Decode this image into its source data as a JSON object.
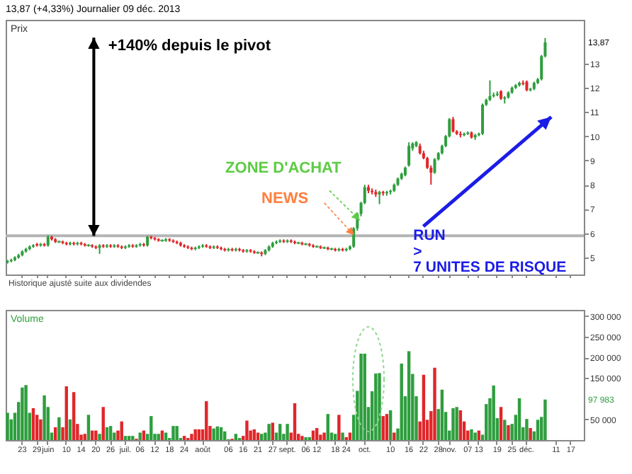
{
  "chart_data": [
    {
      "type": "candlestick",
      "title": "13,87 (+4,33%)   Journalier 09 déc. 2013",
      "ylabel": "Prix",
      "ohlc": [
        [
          4.8,
          4.9,
          4.75,
          4.85
        ],
        [
          4.85,
          4.95,
          4.8,
          4.9
        ],
        [
          4.9,
          5.05,
          4.85,
          5.0
        ],
        [
          5.0,
          5.15,
          4.95,
          5.1
        ],
        [
          5.1,
          5.3,
          5.05,
          5.25
        ],
        [
          5.25,
          5.4,
          5.2,
          5.35
        ],
        [
          5.35,
          5.5,
          5.3,
          5.45
        ],
        [
          5.45,
          5.55,
          5.4,
          5.5
        ],
        [
          5.55,
          5.6,
          5.45,
          5.5
        ],
        [
          5.5,
          5.6,
          5.45,
          5.55
        ],
        [
          5.55,
          5.6,
          5.45,
          5.5
        ],
        [
          5.5,
          5.92,
          5.45,
          5.85
        ],
        [
          5.85,
          5.9,
          5.7,
          5.75
        ],
        [
          5.75,
          5.8,
          5.6,
          5.65
        ],
        [
          5.65,
          5.7,
          5.6,
          5.65
        ],
        [
          5.65,
          5.7,
          5.55,
          5.6
        ],
        [
          5.6,
          5.65,
          5.5,
          5.55
        ],
        [
          5.55,
          5.65,
          5.5,
          5.6
        ],
        [
          5.6,
          5.65,
          5.5,
          5.55
        ],
        [
          5.55,
          5.65,
          5.5,
          5.6
        ],
        [
          5.6,
          5.65,
          5.5,
          5.55
        ],
        [
          5.55,
          5.6,
          5.45,
          5.5
        ],
        [
          5.5,
          5.55,
          5.45,
          5.5
        ],
        [
          5.5,
          5.55,
          5.4,
          5.45
        ],
        [
          5.45,
          5.5,
          5.35,
          5.4
        ],
        [
          5.4,
          5.55,
          5.15,
          5.5
        ],
        [
          5.5,
          5.55,
          5.4,
          5.45
        ],
        [
          5.45,
          5.55,
          5.4,
          5.5
        ],
        [
          5.5,
          5.55,
          5.4,
          5.45
        ],
        [
          5.45,
          5.55,
          5.4,
          5.5
        ],
        [
          5.5,
          5.55,
          5.4,
          5.45
        ],
        [
          5.45,
          5.5,
          5.35,
          5.4
        ],
        [
          5.4,
          5.5,
          5.35,
          5.45
        ],
        [
          5.45,
          5.55,
          5.4,
          5.5
        ],
        [
          5.5,
          5.55,
          5.4,
          5.45
        ],
        [
          5.45,
          5.55,
          5.4,
          5.5
        ],
        [
          5.5,
          5.6,
          5.45,
          5.55
        ],
        [
          5.55,
          5.6,
          5.45,
          5.5
        ],
        [
          5.5,
          5.9,
          5.45,
          5.85
        ],
        [
          5.85,
          5.9,
          5.75,
          5.8
        ],
        [
          5.8,
          5.85,
          5.7,
          5.75
        ],
        [
          5.75,
          5.8,
          5.65,
          5.7
        ],
        [
          5.7,
          5.75,
          5.65,
          5.7
        ],
        [
          5.7,
          5.8,
          5.65,
          5.75
        ],
        [
          5.75,
          5.8,
          5.65,
          5.7
        ],
        [
          5.7,
          5.75,
          5.6,
          5.65
        ],
        [
          5.65,
          5.7,
          5.55,
          5.6
        ],
        [
          5.6,
          5.65,
          5.45,
          5.5
        ],
        [
          5.5,
          5.55,
          5.4,
          5.45
        ],
        [
          5.45,
          5.5,
          5.35,
          5.4
        ],
        [
          5.4,
          5.45,
          5.3,
          5.35
        ],
        [
          5.35,
          5.45,
          5.3,
          5.4
        ],
        [
          5.4,
          5.5,
          5.35,
          5.45
        ],
        [
          5.45,
          5.55,
          5.4,
          5.5
        ],
        [
          5.5,
          5.55,
          5.4,
          5.45
        ],
        [
          5.45,
          5.5,
          5.35,
          5.4
        ],
        [
          5.4,
          5.5,
          5.35,
          5.45
        ],
        [
          5.45,
          5.5,
          5.35,
          5.4
        ],
        [
          5.4,
          5.45,
          5.3,
          5.35
        ],
        [
          5.35,
          5.4,
          5.25,
          5.3
        ],
        [
          5.3,
          5.4,
          5.25,
          5.35
        ],
        [
          5.35,
          5.4,
          5.25,
          5.3
        ],
        [
          5.3,
          5.4,
          5.25,
          5.35
        ],
        [
          5.35,
          5.4,
          5.25,
          5.3
        ],
        [
          5.3,
          5.35,
          5.2,
          5.25
        ],
        [
          5.25,
          5.35,
          5.2,
          5.3
        ],
        [
          5.3,
          5.35,
          5.2,
          5.25
        ],
        [
          5.25,
          5.3,
          5.15,
          5.2
        ],
        [
          5.2,
          5.25,
          5.15,
          5.2
        ],
        [
          5.2,
          5.25,
          5.05,
          5.15
        ],
        [
          5.15,
          5.35,
          5.1,
          5.3
        ],
        [
          5.3,
          5.5,
          5.25,
          5.45
        ],
        [
          5.45,
          5.65,
          5.4,
          5.6
        ],
        [
          5.6,
          5.7,
          5.55,
          5.65
        ],
        [
          5.65,
          5.75,
          5.6,
          5.7
        ],
        [
          5.7,
          5.75,
          5.6,
          5.65
        ],
        [
          5.65,
          5.75,
          5.6,
          5.7
        ],
        [
          5.7,
          5.75,
          5.6,
          5.65
        ],
        [
          5.65,
          5.7,
          5.55,
          5.6
        ],
        [
          5.6,
          5.65,
          5.55,
          5.6
        ],
        [
          5.6,
          5.65,
          5.5,
          5.55
        ],
        [
          5.55,
          5.6,
          5.5,
          5.55
        ],
        [
          5.55,
          5.6,
          5.45,
          5.5
        ],
        [
          5.5,
          5.55,
          5.4,
          5.45
        ],
        [
          5.45,
          5.5,
          5.4,
          5.45
        ],
        [
          5.45,
          5.5,
          5.35,
          5.4
        ],
        [
          5.4,
          5.45,
          5.35,
          5.4
        ],
        [
          5.4,
          5.45,
          5.3,
          5.35
        ],
        [
          5.35,
          5.4,
          5.3,
          5.35
        ],
        [
          5.35,
          5.4,
          5.25,
          5.3
        ],
        [
          5.3,
          5.4,
          5.25,
          5.35
        ],
        [
          5.35,
          5.4,
          5.25,
          5.3
        ],
        [
          5.3,
          5.4,
          5.25,
          5.35
        ],
        [
          5.35,
          5.5,
          5.3,
          5.45
        ],
        [
          5.45,
          6.25,
          5.4,
          6.2
        ],
        [
          6.2,
          6.85,
          6.1,
          6.8
        ],
        [
          6.8,
          7.3,
          6.7,
          7.25
        ],
        [
          7.25,
          8.0,
          7.2,
          7.9
        ],
        [
          7.9,
          8.0,
          7.65,
          7.75
        ],
        [
          7.75,
          7.85,
          7.6,
          7.7
        ],
        [
          7.7,
          7.8,
          7.5,
          7.6
        ],
        [
          7.6,
          7.75,
          7.2,
          7.7
        ],
        [
          7.7,
          7.75,
          7.55,
          7.65
        ],
        [
          7.65,
          7.75,
          7.55,
          7.7
        ],
        [
          7.7,
          7.8,
          7.6,
          7.75
        ],
        [
          7.75,
          8.05,
          7.7,
          8.0
        ],
        [
          8.0,
          8.3,
          7.95,
          8.25
        ],
        [
          8.25,
          8.5,
          8.2,
          8.45
        ],
        [
          8.4,
          8.75,
          8.35,
          8.7
        ],
        [
          8.8,
          9.75,
          8.75,
          9.6
        ],
        [
          9.5,
          9.75,
          9.4,
          9.7
        ],
        [
          9.6,
          9.8,
          9.55,
          9.75
        ],
        [
          9.6,
          9.7,
          9.25,
          9.3
        ],
        [
          9.3,
          9.4,
          9.05,
          9.1
        ],
        [
          9.1,
          9.15,
          8.65,
          8.7
        ],
        [
          8.7,
          8.8,
          8.0,
          8.5
        ],
        [
          8.5,
          9.1,
          8.45,
          9.05
        ],
        [
          9.05,
          9.35,
          9.0,
          9.3
        ],
        [
          9.3,
          9.65,
          9.25,
          9.6
        ],
        [
          9.6,
          10.05,
          9.55,
          10.0
        ],
        [
          10.0,
          10.75,
          9.95,
          10.7
        ],
        [
          10.7,
          10.8,
          10.15,
          10.2
        ],
        [
          10.2,
          10.25,
          10.05,
          10.1
        ],
        [
          10.1,
          10.2,
          9.95,
          10.05
        ],
        [
          10.05,
          10.15,
          10.0,
          10.1
        ],
        [
          10.1,
          10.2,
          10.05,
          10.15
        ],
        [
          10.15,
          10.2,
          9.9,
          9.95
        ],
        [
          9.95,
          10.1,
          9.85,
          10.05
        ],
        [
          10.05,
          10.15,
          10.0,
          10.1
        ],
        [
          10.1,
          11.35,
          10.05,
          11.3
        ],
        [
          11.3,
          11.55,
          11.25,
          11.5
        ],
        [
          11.5,
          12.3,
          11.45,
          11.65
        ],
        [
          11.65,
          11.8,
          11.6,
          11.7
        ],
        [
          11.7,
          11.85,
          11.65,
          11.75
        ],
        [
          11.85,
          11.9,
          11.5,
          11.55
        ],
        [
          11.55,
          11.65,
          11.35,
          11.6
        ],
        [
          11.6,
          11.85,
          11.55,
          11.8
        ],
        [
          11.8,
          12.05,
          11.75,
          12.0
        ],
        [
          12.0,
          12.15,
          11.95,
          12.1
        ],
        [
          12.1,
          12.25,
          12.05,
          12.2
        ],
        [
          12.2,
          12.3,
          12.1,
          12.15
        ],
        [
          12.25,
          12.3,
          11.85,
          11.9
        ],
        [
          11.9,
          12.0,
          11.85,
          11.95
        ],
        [
          11.95,
          12.25,
          11.9,
          12.2
        ],
        [
          12.2,
          12.4,
          12.15,
          12.35
        ],
        [
          12.35,
          13.35,
          12.3,
          13.3
        ],
        [
          13.3,
          14.05,
          13.25,
          13.87
        ],
        null,
        null,
        null,
        null,
        null,
        null,
        null,
        null,
        null,
        null
      ],
      "ylim": [
        4.3,
        14.8
      ],
      "yticks": [
        5,
        6,
        7,
        8,
        9,
        10,
        11,
        12,
        13
      ],
      "ref_lines": [
        {
          "axis": "y",
          "value": 5.9,
          "color": "#b4b4b4"
        }
      ],
      "tick_labels": "y",
      "annotations": [
        "+140% depuis le pivot",
        "ZONE D'ACHAT",
        "NEWS",
        "RUN",
        ">",
        "7 UNITES DE RISQUE",
        "13,87",
        "Historique ajusté suite aux dividendes"
      ]
    },
    {
      "type": "bar",
      "ylabel": "Volume",
      "categories": [
        null,
        null,
        null,
        null,
        "23",
        null,
        null,
        null,
        "29",
        null,
        null,
        "juin",
        null,
        null,
        null,
        null,
        "10",
        null,
        null,
        null,
        "14",
        null,
        null,
        null,
        "20",
        null,
        null,
        null,
        "26",
        null,
        null,
        null,
        "juil.",
        null,
        null,
        null,
        "06",
        null,
        null,
        null,
        "12",
        null,
        null,
        null,
        "18",
        null,
        null,
        null,
        "24",
        null,
        null,
        null,
        null,
        "août",
        null,
        null,
        null,
        null,
        null,
        null,
        "06",
        null,
        null,
        null,
        "16",
        null,
        null,
        null,
        "21",
        null,
        null,
        null,
        "27",
        null,
        null,
        null,
        "sept.",
        null,
        null,
        null,
        null,
        "06",
        null,
        null,
        "12",
        null,
        null,
        null,
        null,
        "18",
        null,
        null,
        "24",
        null,
        null,
        null,
        null,
        "oct.",
        null,
        null,
        null,
        null,
        null,
        null,
        "10",
        null,
        null,
        null,
        null,
        "16",
        null,
        null,
        null,
        "22",
        null,
        null,
        null,
        "28",
        null,
        null,
        "nov.",
        null,
        null,
        null,
        null,
        "07",
        null,
        null,
        "13",
        null,
        null,
        null,
        null,
        "19",
        null,
        null,
        null,
        "25",
        null,
        null,
        null,
        "déc.",
        null,
        null,
        null,
        null,
        null,
        null,
        null,
        "11",
        null,
        null,
        null,
        "17",
        null,
        null,
        null
      ],
      "values": [
        66000,
        50000,
        66000,
        92000,
        127000,
        133000,
        66000,
        77000,
        61000,
        50000,
        108000,
        80000,
        18000,
        31000,
        55000,
        31000,
        130000,
        50000,
        116000,
        39000,
        13000,
        15000,
        61000,
        23000,
        23000,
        15000,
        80000,
        31000,
        34000,
        18000,
        23000,
        45000,
        10000,
        10000,
        10000,
        3000,
        18000,
        23000,
        15000,
        58000,
        15000,
        15000,
        23000,
        18000,
        5000,
        34000,
        34000,
        5000,
        10000,
        5000,
        15000,
        26000,
        26000,
        26000,
        94000,
        34000,
        28000,
        33000,
        31000,
        21000,
        2000,
        3000,
        15000,
        5000,
        10000,
        47000,
        23000,
        26000,
        18000,
        15000,
        18000,
        39000,
        42000,
        18000,
        39000,
        15000,
        39000,
        18000,
        89000,
        15000,
        10000,
        7000,
        7000,
        23000,
        29000,
        13000,
        18000,
        63000,
        18000,
        15000,
        61000,
        18000,
        7000,
        18000,
        61000,
        119000,
        209000,
        209000,
        80000,
        118000,
        161000,
        162000,
        58000,
        63000,
        72000,
        18000,
        28000,
        185000,
        106000,
        215000,
        160000,
        106000,
        45000,
        158000,
        49000,
        70000,
        175000,
        75000,
        122000,
        68000,
        23000,
        77000,
        80000,
        72000,
        45000,
        23000,
        26000,
        18000,
        23000,
        13000,
        87000,
        101000,
        132000,
        53000,
        80000,
        49000,
        36000,
        39000,
        61000,
        101000,
        31000,
        51000,
        29000,
        21000,
        49000,
        56000,
        97983,
        null,
        null,
        null,
        null,
        null,
        null,
        null,
        null,
        null,
        null
      ],
      "colors": [
        "#2e9e3e",
        "#2e9e3e",
        "#2e9e3e",
        "#2e9e3e",
        "#2e9e3e",
        "#2e9e3e",
        "#2e9e3e",
        "#e0262a",
        "#e0262a",
        "#e0262a",
        "#2e9e3e",
        "#2e9e3e",
        "#2e9e3e",
        "#e0262a",
        "#2e9e3e",
        "#e0262a",
        "#e0262a",
        "#2e9e3e",
        "#e0262a",
        "#e0262a",
        "#e0262a",
        "#e0262a",
        "#2e9e3e",
        "#e0262a",
        "#e0262a",
        "#2e9e3e",
        "#e0262a",
        "#2e9e3e",
        "#2e9e3e",
        "#2e9e3e",
        "#e0262a",
        "#e0262a",
        "#2e9e3e",
        "#2e9e3e",
        "#2e9e3e",
        "#e0262a",
        "#2e9e3e",
        "#e0262a",
        "#2e9e3e",
        "#2e9e3e",
        "#2e9e3e",
        "#2e9e3e",
        "#e0262a",
        "#2e9e3e",
        "#2e9e3e",
        "#2e9e3e",
        "#2e9e3e",
        "#2e9e3e",
        "#e0262a",
        "#e0262a",
        "#e0262a",
        "#e0262a",
        "#e0262a",
        "#e0262a",
        "#e0262a",
        "#e0262a",
        "#2e9e3e",
        "#2e9e3e",
        "#2e9e3e",
        "#2e9e3e",
        "#2e9e3e",
        "#e0262a",
        "#2e9e3e",
        "#2e9e3e",
        "#e0262a",
        "#e0262a",
        "#e0262a",
        "#e0262a",
        "#e0262a",
        "#2e9e3e",
        "#2e9e3e",
        "#2e9e3e",
        "#e0262a",
        "#2e9e3e",
        "#2e9e3e",
        "#2e9e3e",
        "#2e9e3e",
        "#e0262a",
        "#e0262a",
        "#e0262a",
        "#e0262a",
        "#2e9e3e",
        "#2e9e3e",
        "#e0262a",
        "#e0262a",
        "#e0262a",
        "#e0262a",
        "#2e9e3e",
        "#2e9e3e",
        "#2e9e3e",
        "#e0262a",
        "#2e9e3e",
        "#e0262a",
        "#e0262a",
        "#2e9e3e",
        "#2e9e3e",
        "#2e9e3e",
        "#2e9e3e",
        "#2e9e3e",
        "#2e9e3e",
        "#2e9e3e",
        "#2e9e3e",
        "#e0262a",
        "#e0262a",
        "#2e9e3e",
        "#e0262a",
        "#2e9e3e",
        "#2e9e3e",
        "#2e9e3e",
        "#2e9e3e",
        "#2e9e3e",
        "#2e9e3e",
        "#e0262a",
        "#e0262a",
        "#e0262a",
        "#e0262a",
        "#e0262a",
        "#2e9e3e",
        "#2e9e3e",
        "#2e9e3e",
        "#2e9e3e",
        "#2e9e3e",
        "#2e9e3e",
        "#e0262a",
        "#e0262a",
        "#e0262a",
        "#2e9e3e",
        "#2e9e3e",
        "#e0262a",
        "#2e9e3e",
        "#2e9e3e",
        "#2e9e3e",
        "#2e9e3e",
        "#2e9e3e",
        "#e0262a",
        "#2e9e3e",
        "#e0262a",
        "#2e9e3e",
        "#2e9e3e",
        "#2e9e3e",
        "#2e9e3e",
        "#2e9e3e",
        "#e0262a",
        "#2e9e3e",
        "#2e9e3e",
        "#2e9e3e",
        "#2e9e3e",
        null,
        null,
        null,
        null,
        null,
        null,
        null,
        null,
        null,
        null
      ],
      "ylim": [
        0,
        315000
      ],
      "yticks": [
        {
          "value": 50000,
          "label": "50 000"
        },
        {
          "value": 150000,
          "label": "150 000"
        },
        {
          "value": 200000,
          "label": "200 000"
        },
        {
          "value": 250000,
          "label": "250 000"
        },
        {
          "value": 300000,
          "label": "300 000"
        }
      ],
      "annotations": [
        "97 983"
      ]
    }
  ]
}
